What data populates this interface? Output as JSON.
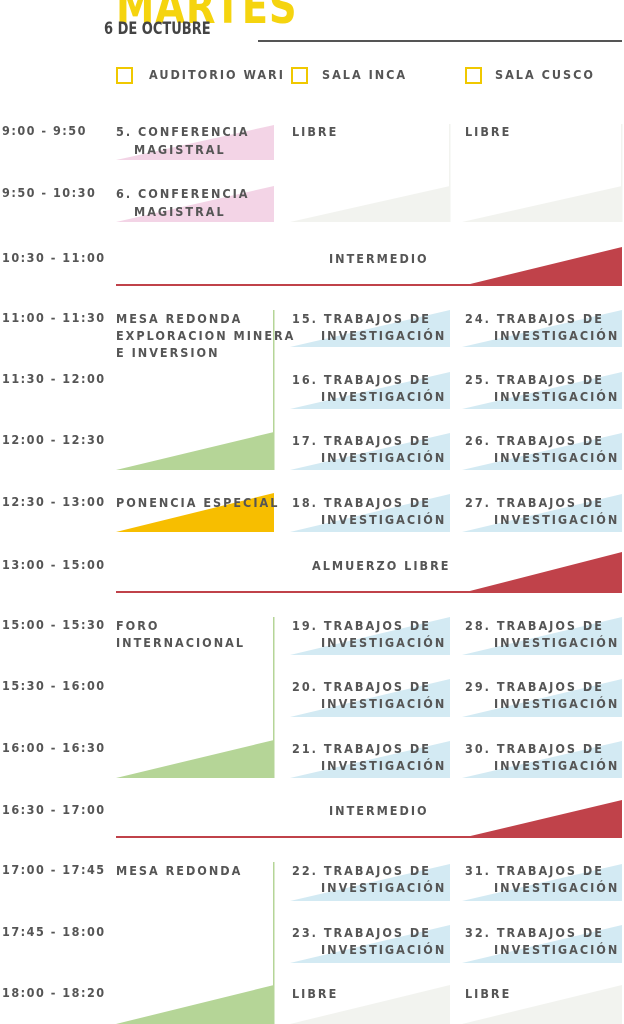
{
  "header": {
    "day": "MARTES",
    "date": "6 DE OCTUBRE"
  },
  "rooms": [
    "AUDITORIO WARI",
    "SALA INCA",
    "SALA CUSCO"
  ],
  "times": [
    "9:00 - 9:50",
    "9:50 - 10:30",
    "10:30 - 11:00",
    "11:00 - 11:30",
    "11:30 - 12:00",
    "12:00 - 12:30",
    "12:30 - 13:00",
    "13:00 - 15:00",
    "15:00 - 15:30",
    "15:30 - 16:00",
    "16:00 - 16:30",
    "16:30 - 17:00",
    "17:00 - 17:45",
    "17:45 - 18:00",
    "18:00 - 18:20"
  ],
  "col1": {
    "conf5": [
      "5. CONFERENCIA",
      "MAGISTRAL"
    ],
    "conf6": [
      "6. CONFERENCIA",
      "MAGISTRAL"
    ],
    "mesa1": [
      "MESA REDONDA",
      "EXPLORACION MINERA",
      "E INVERSION"
    ],
    "ponencia": "PONENCIA ESPECIAL",
    "foro": [
      "FORO",
      "INTERNACIONAL"
    ],
    "mesa2": "MESA REDONDA"
  },
  "breaks": [
    "INTERMEDIO",
    "ALMUERZO LIBRE",
    "INTERMEDIO"
  ],
  "libre": "LIBRE",
  "trabajo_line2": "INVESTIGACIÓN",
  "col2": [
    "15. TRABAJOS DE",
    "16. TRABAJOS DE",
    "17. TRABAJOS DE",
    "18. TRABAJOS DE",
    "19. TRABAJOS DE",
    "20. TRABAJOS DE",
    "21. TRABAJOS DE",
    "22. TRABAJOS DE",
    "23. TRABAJOS DE"
  ],
  "col3": [
    "24. TRABAJOS DE",
    "25. TRABAJOS DE",
    "26. TRABAJOS DE",
    "27. TRABAJOS DE",
    "28. TRABAJOS DE",
    "29. TRABAJOS DE",
    "30. TRABAJOS DE",
    "31. TRABAJOS DE",
    "32. TRABAJOS DE"
  ],
  "colors": {
    "yellow": "#f5d40f",
    "pink": "#f3d4e6",
    "green": "#b5d597",
    "orange": "#f7be00",
    "blue": "#d3eaf3",
    "gray": "#f2f3ef",
    "red": "#c0424a"
  }
}
